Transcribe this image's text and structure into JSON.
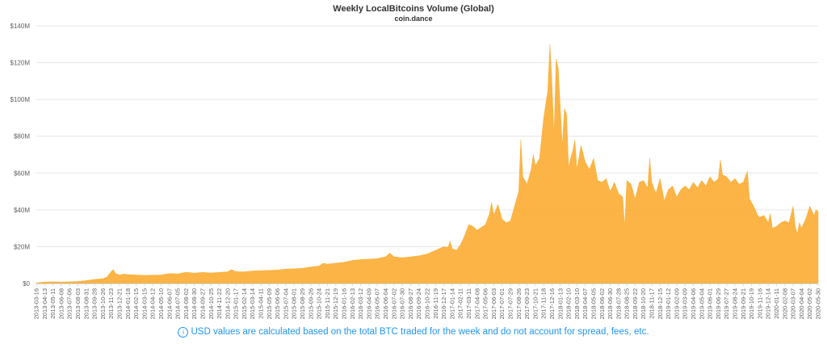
{
  "header": {
    "title": "Weekly LocalBitcoins Volume (Global)",
    "subtitle": "coin.dance"
  },
  "note": {
    "icon": "info-icon",
    "text": "USD values are calculated based on the total BTC traded for the week and do not account for spread, fees, etc."
  },
  "colors": {
    "area": "#fbb03b",
    "grid": "#e6e6e6",
    "axis_text": "#606060",
    "note": "#2196f3"
  },
  "chart_data": {
    "type": "area",
    "title": "Weekly LocalBitcoins Volume (Global)",
    "subtitle": "coin.dance",
    "xlabel": "",
    "ylabel": "",
    "grid": true,
    "legend": "none",
    "ylim": [
      0,
      140
    ],
    "yunit": "USD millions",
    "yticks": [
      0,
      20,
      40,
      60,
      80,
      100,
      120,
      140
    ],
    "ytick_labels": [
      "$0",
      "$20M",
      "$40M",
      "$60M",
      "$80M",
      "$100M",
      "$120M",
      "$140M"
    ],
    "xlim": [
      "2013-03-16",
      "2020-05-30"
    ],
    "xtick_labels": [
      "2013-03-16",
      "2013-04-13",
      "2013-05-11",
      "2013-06-08",
      "2013-07-06",
      "2013-08-03",
      "2013-08-31",
      "2013-09-28",
      "2013-10-26",
      "2013-11-23",
      "2013-12-21",
      "2014-01-18",
      "2014-02-15",
      "2014-03-15",
      "2014-04-12",
      "2014-05-10",
      "2014-06-07",
      "2014-07-05",
      "2014-08-02",
      "2014-08-30",
      "2014-09-27",
      "2014-10-25",
      "2014-11-22",
      "2014-12-20",
      "2015-01-17",
      "2015-02-14",
      "2015-03-14",
      "2015-04-11",
      "2015-05-09",
      "2015-06-06",
      "2015-07-04",
      "2015-08-01",
      "2015-08-29",
      "2015-09-26",
      "2015-10-24",
      "2015-11-21",
      "2015-12-19",
      "2016-01-16",
      "2016-02-13",
      "2016-03-12",
      "2016-04-09",
      "2016-05-07",
      "2016-06-04",
      "2016-07-02",
      "2016-07-30",
      "2016-08-27",
      "2016-09-24",
      "2016-10-22",
      "2016-11-19",
      "2016-12-17",
      "2017-01-14",
      "2017-02-11",
      "2017-03-11",
      "2017-04-08",
      "2017-05-06",
      "2017-06-03",
      "2017-07-01",
      "2017-07-29",
      "2017-08-26",
      "2017-09-23",
      "2017-10-21",
      "2017-11-18",
      "2017-12-16",
      "2018-01-13",
      "2018-02-10",
      "2018-03-10",
      "2018-04-07",
      "2018-05-05",
      "2018-06-02",
      "2018-06-30",
      "2018-07-28",
      "2018-08-25",
      "2018-09-22",
      "2018-10-20",
      "2018-11-17",
      "2018-12-15",
      "2019-01-12",
      "2019-02-09",
      "2019-03-09",
      "2019-04-06",
      "2019-05-04",
      "2019-06-01",
      "2019-06-29",
      "2019-07-27",
      "2019-08-24",
      "2019-09-21",
      "2019-10-19",
      "2019-11-16",
      "2019-12-14",
      "2020-01-11",
      "2020-02-08",
      "2020-03-07",
      "2020-04-04",
      "2020-05-02",
      "2020-05-30"
    ],
    "series": [
      {
        "points": [
          [
            "2013-03-16",
            0.3
          ],
          [
            "2013-04-13",
            0.8
          ],
          [
            "2013-05-11",
            0.9
          ],
          [
            "2013-06-08",
            0.8
          ],
          [
            "2013-07-06",
            0.9
          ],
          [
            "2013-08-03",
            1.1
          ],
          [
            "2013-08-31",
            1.6
          ],
          [
            "2013-09-28",
            2.2
          ],
          [
            "2013-10-26",
            2.6
          ],
          [
            "2013-11-09",
            3.5
          ],
          [
            "2013-11-23",
            6.5
          ],
          [
            "2013-11-30",
            7.5
          ],
          [
            "2013-12-07",
            5.5
          ],
          [
            "2013-12-21",
            4.5
          ],
          [
            "2014-01-04",
            5.2
          ],
          [
            "2014-01-18",
            4.8
          ],
          [
            "2014-02-15",
            4.6
          ],
          [
            "2014-03-15",
            4.4
          ],
          [
            "2014-04-12",
            4.5
          ],
          [
            "2014-05-10",
            4.6
          ],
          [
            "2014-06-07",
            5.4
          ],
          [
            "2014-07-05",
            5.2
          ],
          [
            "2014-08-02",
            6.1
          ],
          [
            "2014-08-30",
            5.6
          ],
          [
            "2014-09-27",
            6.0
          ],
          [
            "2014-10-25",
            5.7
          ],
          [
            "2014-11-22",
            6.0
          ],
          [
            "2014-12-20",
            6.3
          ],
          [
            "2015-01-03",
            7.5
          ],
          [
            "2015-01-17",
            6.4
          ],
          [
            "2015-02-14",
            6.3
          ],
          [
            "2015-03-14",
            6.8
          ],
          [
            "2015-04-11",
            7.0
          ],
          [
            "2015-05-09",
            7.1
          ],
          [
            "2015-06-06",
            7.3
          ],
          [
            "2015-07-04",
            7.8
          ],
          [
            "2015-08-01",
            8.0
          ],
          [
            "2015-08-29",
            8.2
          ],
          [
            "2015-09-26",
            9.0
          ],
          [
            "2015-10-24",
            9.5
          ],
          [
            "2015-11-07",
            11.0
          ],
          [
            "2015-11-21",
            10.5
          ],
          [
            "2015-12-19",
            11.0
          ],
          [
            "2016-01-16",
            11.5
          ],
          [
            "2016-02-13",
            12.5
          ],
          [
            "2016-03-12",
            13.0
          ],
          [
            "2016-04-09",
            13.2
          ],
          [
            "2016-05-07",
            13.5
          ],
          [
            "2016-06-04",
            14.5
          ],
          [
            "2016-06-18",
            16.5
          ],
          [
            "2016-07-02",
            14.5
          ],
          [
            "2016-07-30",
            14.0
          ],
          [
            "2016-08-27",
            14.5
          ],
          [
            "2016-09-24",
            15.0
          ],
          [
            "2016-10-22",
            16.0
          ],
          [
            "2016-11-19",
            18.0
          ],
          [
            "2016-12-17",
            20.0
          ],
          [
            "2016-12-31",
            19.5
          ],
          [
            "2017-01-07",
            23.0
          ],
          [
            "2017-01-14",
            19.0
          ],
          [
            "2017-01-28",
            18.0
          ],
          [
            "2017-02-11",
            21.0
          ],
          [
            "2017-02-25",
            26.0
          ],
          [
            "2017-03-11",
            32.0
          ],
          [
            "2017-03-25",
            31.0
          ],
          [
            "2017-04-08",
            29.0
          ],
          [
            "2017-05-06",
            32.0
          ],
          [
            "2017-05-20",
            38.0
          ],
          [
            "2017-05-27",
            44.0
          ],
          [
            "2017-06-03",
            37.0
          ],
          [
            "2017-06-17",
            43.0
          ],
          [
            "2017-07-01",
            35.0
          ],
          [
            "2017-07-15",
            33.0
          ],
          [
            "2017-07-29",
            34.0
          ],
          [
            "2017-08-12",
            42.0
          ],
          [
            "2017-08-26",
            50.0
          ],
          [
            "2017-09-02",
            78.0
          ],
          [
            "2017-09-09",
            58.0
          ],
          [
            "2017-09-23",
            54.0
          ],
          [
            "2017-10-07",
            62.0
          ],
          [
            "2017-10-14",
            70.0
          ],
          [
            "2017-10-21",
            64.0
          ],
          [
            "2017-11-04",
            68.0
          ],
          [
            "2017-11-18",
            90.0
          ],
          [
            "2017-12-02",
            105.0
          ],
          [
            "2017-12-09",
            130.0
          ],
          [
            "2017-12-16",
            108.0
          ],
          [
            "2017-12-23",
            80.0
          ],
          [
            "2017-12-30",
            122.0
          ],
          [
            "2018-01-06",
            117.0
          ],
          [
            "2018-01-13",
            95.0
          ],
          [
            "2018-01-20",
            75.0
          ],
          [
            "2018-01-27",
            95.0
          ],
          [
            "2018-02-03",
            92.0
          ],
          [
            "2018-02-10",
            63.0
          ],
          [
            "2018-02-17",
            68.0
          ],
          [
            "2018-02-24",
            72.0
          ],
          [
            "2018-03-03",
            78.0
          ],
          [
            "2018-03-10",
            62.0
          ],
          [
            "2018-03-24",
            75.0
          ],
          [
            "2018-04-07",
            66.0
          ],
          [
            "2018-04-21",
            62.0
          ],
          [
            "2018-05-05",
            68.0
          ],
          [
            "2018-05-19",
            56.0
          ],
          [
            "2018-06-02",
            55.0
          ],
          [
            "2018-06-16",
            57.0
          ],
          [
            "2018-06-30",
            50.0
          ],
          [
            "2018-07-14",
            55.0
          ],
          [
            "2018-07-28",
            49.0
          ],
          [
            "2018-08-11",
            47.0
          ],
          [
            "2018-08-18",
            31.0
          ],
          [
            "2018-08-25",
            56.0
          ],
          [
            "2018-09-08",
            54.0
          ],
          [
            "2018-09-22",
            46.0
          ],
          [
            "2018-10-06",
            55.0
          ],
          [
            "2018-10-20",
            56.0
          ],
          [
            "2018-11-03",
            52.0
          ],
          [
            "2018-11-10",
            68.0
          ],
          [
            "2018-11-17",
            55.0
          ],
          [
            "2018-12-01",
            49.0
          ],
          [
            "2018-12-15",
            57.0
          ],
          [
            "2018-12-29",
            45.0
          ],
          [
            "2019-01-12",
            51.0
          ],
          [
            "2019-01-26",
            53.0
          ],
          [
            "2019-02-09",
            47.0
          ],
          [
            "2019-02-23",
            51.0
          ],
          [
            "2019-03-09",
            53.0
          ],
          [
            "2019-03-23",
            51.0
          ],
          [
            "2019-04-06",
            55.0
          ],
          [
            "2019-04-20",
            52.0
          ],
          [
            "2019-05-04",
            56.0
          ],
          [
            "2019-05-18",
            53.0
          ],
          [
            "2019-06-01",
            58.0
          ],
          [
            "2019-06-15",
            55.0
          ],
          [
            "2019-06-29",
            57.0
          ],
          [
            "2019-07-06",
            67.0
          ],
          [
            "2019-07-13",
            59.0
          ],
          [
            "2019-07-27",
            58.0
          ],
          [
            "2019-08-10",
            55.0
          ],
          [
            "2019-08-24",
            57.0
          ],
          [
            "2019-09-07",
            54.0
          ],
          [
            "2019-09-21",
            55.0
          ],
          [
            "2019-10-05",
            61.0
          ],
          [
            "2019-10-12",
            46.0
          ],
          [
            "2019-10-26",
            42.0
          ],
          [
            "2019-11-09",
            37.0
          ],
          [
            "2019-11-16",
            36.0
          ],
          [
            "2019-11-30",
            37.0
          ],
          [
            "2019-12-14",
            33.0
          ],
          [
            "2019-12-21",
            38.0
          ],
          [
            "2019-12-28",
            30.0
          ],
          [
            "2020-01-11",
            31.0
          ],
          [
            "2020-01-25",
            33.0
          ],
          [
            "2020-02-08",
            34.0
          ],
          [
            "2020-02-22",
            33.0
          ],
          [
            "2020-03-07",
            42.0
          ],
          [
            "2020-03-14",
            31.0
          ],
          [
            "2020-03-21",
            27.0
          ],
          [
            "2020-03-28",
            33.0
          ],
          [
            "2020-04-04",
            30.0
          ],
          [
            "2020-04-18",
            35.0
          ],
          [
            "2020-05-02",
            42.0
          ],
          [
            "2020-05-16",
            37.0
          ],
          [
            "2020-05-23",
            40.0
          ],
          [
            "2020-05-30",
            39.0
          ]
        ]
      }
    ]
  }
}
